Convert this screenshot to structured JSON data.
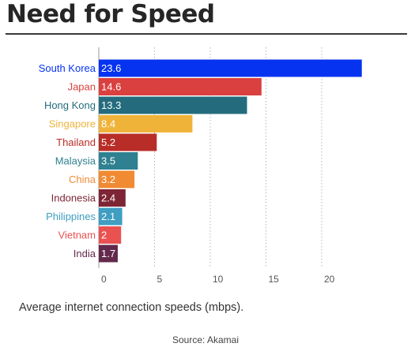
{
  "title": "Need for Speed",
  "caption": "Average internet connection speeds (mbps).",
  "source": "Source: Akamai",
  "chart_data": {
    "type": "bar",
    "orientation": "horizontal",
    "title": "Need for Speed",
    "xlabel": "",
    "ylabel": "",
    "xlim": [
      0,
      25
    ],
    "xticks": [
      0,
      5,
      10,
      15,
      20
    ],
    "grid": true,
    "categories": [
      "South Korea",
      "Japan",
      "Hong Kong",
      "Singapore",
      "Thailand",
      "Malaysia",
      "China",
      "Indonesia",
      "Philippines",
      "Vietnam",
      "India"
    ],
    "values": [
      23.6,
      14.6,
      13.3,
      8.4,
      5.2,
      3.5,
      3.2,
      2.4,
      2.1,
      2,
      1.7
    ],
    "value_labels": [
      "23.6",
      "14.6",
      "13.3",
      "8.4",
      "5.2",
      "3.5",
      "3.2",
      "2.4",
      "2.1",
      "2",
      "1.7"
    ],
    "colors": [
      "#0533f0",
      "#d9403f",
      "#246c7d",
      "#f0b33a",
      "#b82d27",
      "#2f8090",
      "#f08a33",
      "#7e2535",
      "#3f9ec2",
      "#ea5151",
      "#63294c"
    ]
  }
}
